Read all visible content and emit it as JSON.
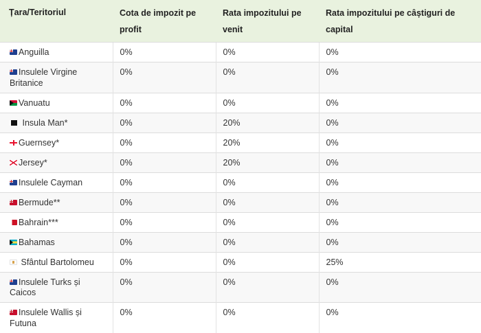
{
  "table": {
    "headers": [
      "Țara/Teritoriul",
      "Cota de impozit pe profit",
      "Rata impozitului pe venit",
      "Rata impozitului pe câștiguri de capital"
    ],
    "rows": [
      {
        "country": "Anguilla",
        "flag": "anguilla-flag",
        "profit": "0%",
        "income": "0%",
        "capital": "0%"
      },
      {
        "country": "Insulele Virgine Britanice",
        "flag": "british-virgin-islands-flag",
        "profit": "0%",
        "income": "0%",
        "capital": "0%"
      },
      {
        "country": "Vanuatu",
        "flag": "vanuatu-flag",
        "profit": "0%",
        "income": "0%",
        "capital": "0%"
      },
      {
        "country": "Insula Man*",
        "flag": "isle-of-man-flag",
        "profit": "0%",
        "income": "20%",
        "capital": "0%"
      },
      {
        "country": "Guernsey*",
        "flag": "guernsey-flag",
        "profit": "0%",
        "income": "20%",
        "capital": "0%"
      },
      {
        "country": "Jersey*",
        "flag": "jersey-flag",
        "profit": "0%",
        "income": "20%",
        "capital": "0%"
      },
      {
        "country": "Insulele Cayman",
        "flag": "cayman-islands-flag",
        "profit": "0%",
        "income": "0%",
        "capital": "0%"
      },
      {
        "country": "Bermude**",
        "flag": "bermuda-flag",
        "profit": "0%",
        "income": "0%",
        "capital": "0%"
      },
      {
        "country": "Bahrain***",
        "flag": "bahrain-flag",
        "profit": "0%",
        "income": "0%",
        "capital": "0%"
      },
      {
        "country": "Bahamas",
        "flag": "bahamas-flag",
        "profit": "0%",
        "income": "0%",
        "capital": "0%"
      },
      {
        "country": "Sfântul Bartolomeu",
        "flag": "saint-barthelemy-flag",
        "profit": "0%",
        "income": "0%",
        "capital": "25%"
      },
      {
        "country": "Insulele Turks și Caicos",
        "flag": "turks-and-caicos-flag",
        "profit": "0%",
        "income": "0%",
        "capital": "0%"
      },
      {
        "country": "Insulele Wallis și Futuna",
        "flag": "wallis-and-futuna-flag",
        "profit": "0%",
        "income": "0%",
        "capital": "0%"
      }
    ]
  }
}
